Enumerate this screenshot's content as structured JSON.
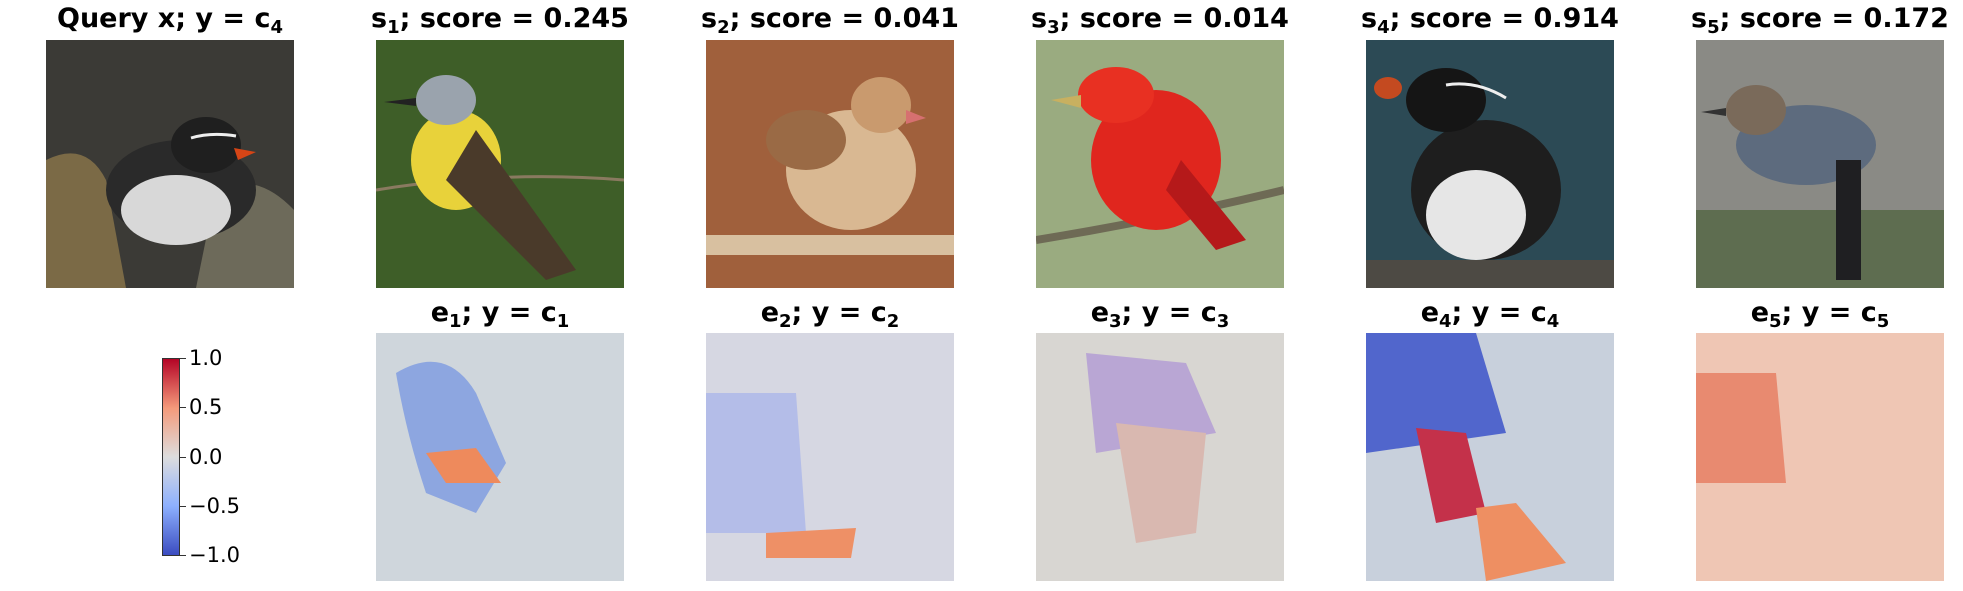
{
  "query": {
    "title_main": "Query x; y = c",
    "title_sub": "4",
    "icon": "bird-image"
  },
  "samples": [
    {
      "s": "s",
      "sub": "1",
      "score_text": "; score = 0.245",
      "score": 0.245
    },
    {
      "s": "s",
      "sub": "2",
      "score_text": "; score = 0.041",
      "score": 0.041
    },
    {
      "s": "s",
      "sub": "3",
      "score_text": "; score = 0.014",
      "score": 0.014
    },
    {
      "s": "s",
      "sub": "4",
      "score_text": "; score = 0.914",
      "score": 0.914
    },
    {
      "s": "s",
      "sub": "5",
      "score_text": "; score = 0.172",
      "score": 0.172
    }
  ],
  "explanations": [
    {
      "e": "e",
      "sub": "1",
      "y_text": "; y = c",
      "y_sub": "1"
    },
    {
      "e": "e",
      "sub": "2",
      "y_text": "; y = c",
      "y_sub": "2"
    },
    {
      "e": "e",
      "sub": "3",
      "y_text": "; y = c",
      "y_sub": "3"
    },
    {
      "e": "e",
      "sub": "4",
      "y_text": "; y = c",
      "y_sub": "4"
    },
    {
      "e": "e",
      "sub": "5",
      "y_text": "; y = c",
      "y_sub": "5"
    }
  ],
  "colorbar": {
    "ticks": [
      "1.0",
      "0.5",
      "0.0",
      "−0.5",
      "−1.0"
    ],
    "colors": {
      "high": "#b40426",
      "mid": "#dddddd",
      "low": "#3b4cc0"
    }
  }
}
